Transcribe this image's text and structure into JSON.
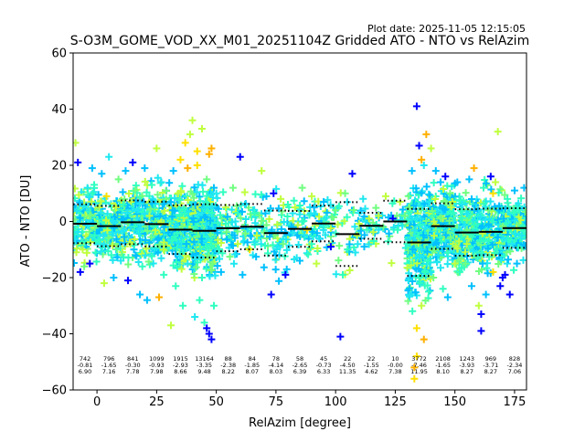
{
  "chart_data": {
    "type": "scatter",
    "plot_date": "Plot date: 2025-11-05 12:15:05",
    "title": "S-O3M_GOME_VOD_XX_M01_20251104Z Gridded ATO - NTO vs RelAzim",
    "xlabel": "RelAzim [degree]",
    "ylabel": "ATO - NTO [DU]",
    "xlim": [
      -10,
      180
    ],
    "ylim": [
      -60,
      60
    ],
    "xticks": [
      0,
      25,
      50,
      75,
      100,
      125,
      150,
      175
    ],
    "xtick_labels": [
      "0",
      "25",
      "50",
      "75",
      "100",
      "125",
      "150",
      "175"
    ],
    "yticks": [
      -60,
      -40,
      -20,
      0,
      20,
      40,
      60
    ],
    "ytick_labels": [
      "−60",
      "−40",
      "−20",
      "0",
      "20",
      "40",
      "60"
    ],
    "colors": {
      "blue": "#0000ff",
      "sky": "#00c0ff",
      "cyan": "#20e8f0",
      "aqua": "#30ffc0",
      "green": "#70ff80",
      "lime": "#c0ff40",
      "yellow": "#ffe000",
      "orange": "#ffb000"
    },
    "bins": [
      {
        "center": -5,
        "count": "742",
        "mean": "-0.81",
        "std": "6.90"
      },
      {
        "center": 5,
        "count": "796",
        "mean": "-1.65",
        "std": "7.16"
      },
      {
        "center": 15,
        "count": "841",
        "mean": "-0.30",
        "std": "7.78"
      },
      {
        "center": 25,
        "count": "1099",
        "mean": "-0.93",
        "std": "7.98"
      },
      {
        "center": 35,
        "count": "1915",
        "mean": "-2.93",
        "std": "8.66"
      },
      {
        "center": 45,
        "count": "13164",
        "mean": "-3.35",
        "std": "9.48"
      },
      {
        "center": 55,
        "count": "88",
        "mean": "-2.38",
        "std": "8.22"
      },
      {
        "center": 65,
        "count": "84",
        "mean": "-1.85",
        "std": "8.07"
      },
      {
        "center": 75,
        "count": "78",
        "mean": "-4.14",
        "std": "8.03"
      },
      {
        "center": 85,
        "count": "58",
        "mean": "-2.65",
        "std": "6.39"
      },
      {
        "center": 95,
        "count": "45",
        "mean": "-0.73",
        "std": "6.33"
      },
      {
        "center": 105,
        "count": "22",
        "mean": "-4.50",
        "std": "11.35"
      },
      {
        "center": 115,
        "count": "22",
        "mean": "-1.55",
        "std": "4.62"
      },
      {
        "center": 125,
        "count": "10",
        "mean": "-0.00",
        "std": "7.38"
      },
      {
        "center": 135,
        "count": "3772",
        "mean": "-7.46",
        "std": "11.95"
      },
      {
        "center": 145,
        "count": "2108",
        "mean": "-1.65",
        "std": "8.10"
      },
      {
        "center": 155,
        "count": "1243",
        "mean": "-3.93",
        "std": "8.27"
      },
      {
        "center": 165,
        "count": "969",
        "mean": "-3.71",
        "std": "8.27"
      },
      {
        "center": 175,
        "count": "828",
        "mean": "-2.34",
        "std": "7.06"
      }
    ],
    "points": [
      [
        -8,
        21,
        "blue"
      ],
      [
        -7,
        -18,
        "blue"
      ],
      [
        -3,
        -15,
        "blue"
      ],
      [
        -9,
        28,
        "lime"
      ],
      [
        -2,
        19,
        "sky"
      ],
      [
        -6,
        -10,
        "lime"
      ],
      [
        -4,
        12,
        "cyan"
      ],
      [
        -1,
        -5,
        "aqua"
      ],
      [
        2,
        17,
        "sky"
      ],
      [
        3,
        -22,
        "lime"
      ],
      [
        5,
        23,
        "cyan"
      ],
      [
        7,
        -20,
        "sky"
      ],
      [
        4,
        9,
        "yellow"
      ],
      [
        6,
        -12,
        "aqua"
      ],
      [
        8,
        5,
        "lime"
      ],
      [
        9,
        15,
        "green"
      ],
      [
        1,
        -3,
        "sky"
      ],
      [
        10,
        -14,
        "cyan"
      ],
      [
        12,
        18,
        "sky"
      ],
      [
        13,
        -21,
        "blue"
      ],
      [
        11,
        6,
        "aqua"
      ],
      [
        14,
        -8,
        "lime"
      ],
      [
        15,
        21,
        "blue"
      ],
      [
        16,
        11,
        "green"
      ],
      [
        18,
        -26,
        "sky"
      ],
      [
        17,
        4,
        "cyan"
      ],
      [
        19,
        -16,
        "aqua"
      ],
      [
        20,
        19,
        "sky"
      ],
      [
        21,
        -28,
        "sky"
      ],
      [
        22,
        2,
        "lime"
      ],
      [
        23,
        13,
        "aqua"
      ],
      [
        24,
        -10,
        "cyan"
      ],
      [
        25,
        26,
        "lime"
      ],
      [
        26,
        -27,
        "orange"
      ],
      [
        27,
        14,
        "cyan"
      ],
      [
        28,
        -19,
        "aqua"
      ],
      [
        29,
        8,
        "green"
      ],
      [
        30,
        -4,
        "sky"
      ],
      [
        31,
        -37,
        "lime"
      ],
      [
        32,
        18,
        "sky"
      ],
      [
        33,
        -23,
        "aqua"
      ],
      [
        34,
        10,
        "lime"
      ],
      [
        35,
        22,
        "yellow"
      ],
      [
        36,
        -30,
        "aqua"
      ],
      [
        37,
        28,
        "yellow"
      ],
      [
        38,
        -15,
        "cyan"
      ],
      [
        39,
        31,
        "lime"
      ],
      [
        40,
        36,
        "lime"
      ],
      [
        41,
        -34,
        "cyan"
      ],
      [
        42,
        25,
        "yellow"
      ],
      [
        43,
        -28,
        "aqua"
      ],
      [
        44,
        33,
        "lime"
      ],
      [
        45,
        -36,
        "aqua"
      ],
      [
        46,
        15,
        "green"
      ],
      [
        47,
        -40,
        "blue"
      ],
      [
        48,
        -42,
        "blue"
      ],
      [
        46,
        -38,
        "blue"
      ],
      [
        47,
        24,
        "orange"
      ],
      [
        48,
        26,
        "orange"
      ],
      [
        49,
        -30,
        "aqua"
      ],
      [
        50,
        10,
        "cyan"
      ],
      [
        42,
        20,
        "yellow"
      ],
      [
        38,
        19,
        "orange"
      ],
      [
        44,
        -20,
        "aqua"
      ],
      [
        52,
        -18,
        "sky"
      ],
      [
        54,
        5,
        "lime"
      ],
      [
        55,
        -2,
        "aqua"
      ],
      [
        57,
        12,
        "green"
      ],
      [
        58,
        0,
        "cyan"
      ],
      [
        59,
        -8,
        "lime"
      ],
      [
        60,
        23,
        "blue"
      ],
      [
        61,
        -19,
        "sky"
      ],
      [
        62,
        6,
        "cyan"
      ],
      [
        64,
        -10,
        "yellow"
      ],
      [
        66,
        3,
        "aqua"
      ],
      [
        67,
        -5,
        "lime"
      ],
      [
        69,
        18,
        "lime"
      ],
      [
        70,
        -4,
        "green"
      ],
      [
        71,
        9,
        "sky"
      ],
      [
        73,
        -26,
        "blue"
      ],
      [
        74,
        10,
        "blue"
      ],
      [
        75,
        -12,
        "sky"
      ],
      [
        77,
        8,
        "lime"
      ],
      [
        78,
        -8,
        "green"
      ],
      [
        79,
        -19,
        "blue"
      ],
      [
        80,
        6,
        "aqua"
      ],
      [
        82,
        -4,
        "cyan"
      ],
      [
        83,
        5,
        "lime"
      ],
      [
        85,
        -14,
        "sky"
      ],
      [
        86,
        12,
        "green"
      ],
      [
        88,
        -3,
        "yellow"
      ],
      [
        90,
        9,
        "lime"
      ],
      [
        91,
        5,
        "sky"
      ],
      [
        92,
        -15,
        "lime"
      ],
      [
        93,
        -6,
        "cyan"
      ],
      [
        95,
        7,
        "sky"
      ],
      [
        97,
        -1,
        "aqua"
      ],
      [
        98,
        -9,
        "blue"
      ],
      [
        100,
        4,
        "green"
      ],
      [
        102,
        -41,
        "blue"
      ],
      [
        103,
        -19,
        "aqua"
      ],
      [
        104,
        10,
        "green"
      ],
      [
        105,
        -10,
        "aqua"
      ],
      [
        107,
        17,
        "blue"
      ],
      [
        109,
        -5,
        "lime"
      ],
      [
        110,
        3,
        "cyan"
      ],
      [
        112,
        -9,
        "sky"
      ],
      [
        114,
        1,
        "lime"
      ],
      [
        116,
        -7,
        "aqua"
      ],
      [
        118,
        2,
        "lime"
      ],
      [
        120,
        -2,
        "green"
      ],
      [
        121,
        9,
        "lime"
      ],
      [
        124,
        1,
        "blue"
      ],
      [
        126,
        -3,
        "aqua"
      ],
      [
        127,
        7,
        "lime"
      ],
      [
        129,
        2,
        "green"
      ],
      [
        130,
        -8,
        "aqua"
      ],
      [
        132,
        18,
        "sky"
      ],
      [
        133,
        -52,
        "orange"
      ],
      [
        134,
        41,
        "blue"
      ],
      [
        133,
        -56,
        "yellow"
      ],
      [
        134,
        -48,
        "yellow"
      ],
      [
        135,
        27,
        "blue"
      ],
      [
        136,
        -30,
        "lime"
      ],
      [
        137,
        20,
        "cyan"
      ],
      [
        138,
        31,
        "orange"
      ],
      [
        139,
        -25,
        "aqua"
      ],
      [
        140,
        26,
        "lime"
      ],
      [
        141,
        -20,
        "green"
      ],
      [
        142,
        18,
        "sky"
      ],
      [
        143,
        -12,
        "cyan"
      ],
      [
        144,
        14,
        "sky"
      ],
      [
        145,
        -24,
        "aqua"
      ],
      [
        146,
        16,
        "blue"
      ],
      [
        147,
        -27,
        "sky"
      ],
      [
        148,
        10,
        "green"
      ],
      [
        150,
        -15,
        "lime"
      ],
      [
        151,
        14,
        "sky"
      ],
      [
        152,
        -18,
        "aqua"
      ],
      [
        153,
        6,
        "cyan"
      ],
      [
        155,
        -8,
        "lime"
      ],
      [
        156,
        15,
        "sky"
      ],
      [
        157,
        -23,
        "sky"
      ],
      [
        158,
        19,
        "orange"
      ],
      [
        160,
        -30,
        "lime"
      ],
      [
        161,
        -33,
        "blue"
      ],
      [
        161,
        -39,
        "blue"
      ],
      [
        162,
        12,
        "aqua"
      ],
      [
        163,
        -26,
        "sky"
      ],
      [
        164,
        4,
        "green"
      ],
      [
        165,
        16,
        "blue"
      ],
      [
        166,
        -18,
        "yellow"
      ],
      [
        167,
        14,
        "lime"
      ],
      [
        168,
        32,
        "lime"
      ],
      [
        169,
        -23,
        "blue"
      ],
      [
        170,
        -20,
        "blue"
      ],
      [
        171,
        -19,
        "blue"
      ],
      [
        172,
        8,
        "aqua"
      ],
      [
        173,
        -26,
        "blue"
      ],
      [
        174,
        -8,
        "cyan"
      ],
      [
        175,
        11,
        "sky"
      ],
      [
        176,
        -15,
        "sky"
      ],
      [
        177,
        4,
        "aqua"
      ],
      [
        178,
        -5,
        "cyan"
      ],
      [
        179,
        12,
        "sky"
      ],
      [
        166,
        10,
        "yellow"
      ],
      [
        149,
        7,
        "lime"
      ],
      [
        137,
        -42,
        "orange"
      ],
      [
        134,
        -38,
        "yellow"
      ],
      [
        136,
        22,
        "orange"
      ],
      [
        135,
        -20,
        "aqua"
      ],
      [
        131,
        5,
        "green"
      ]
    ]
  }
}
